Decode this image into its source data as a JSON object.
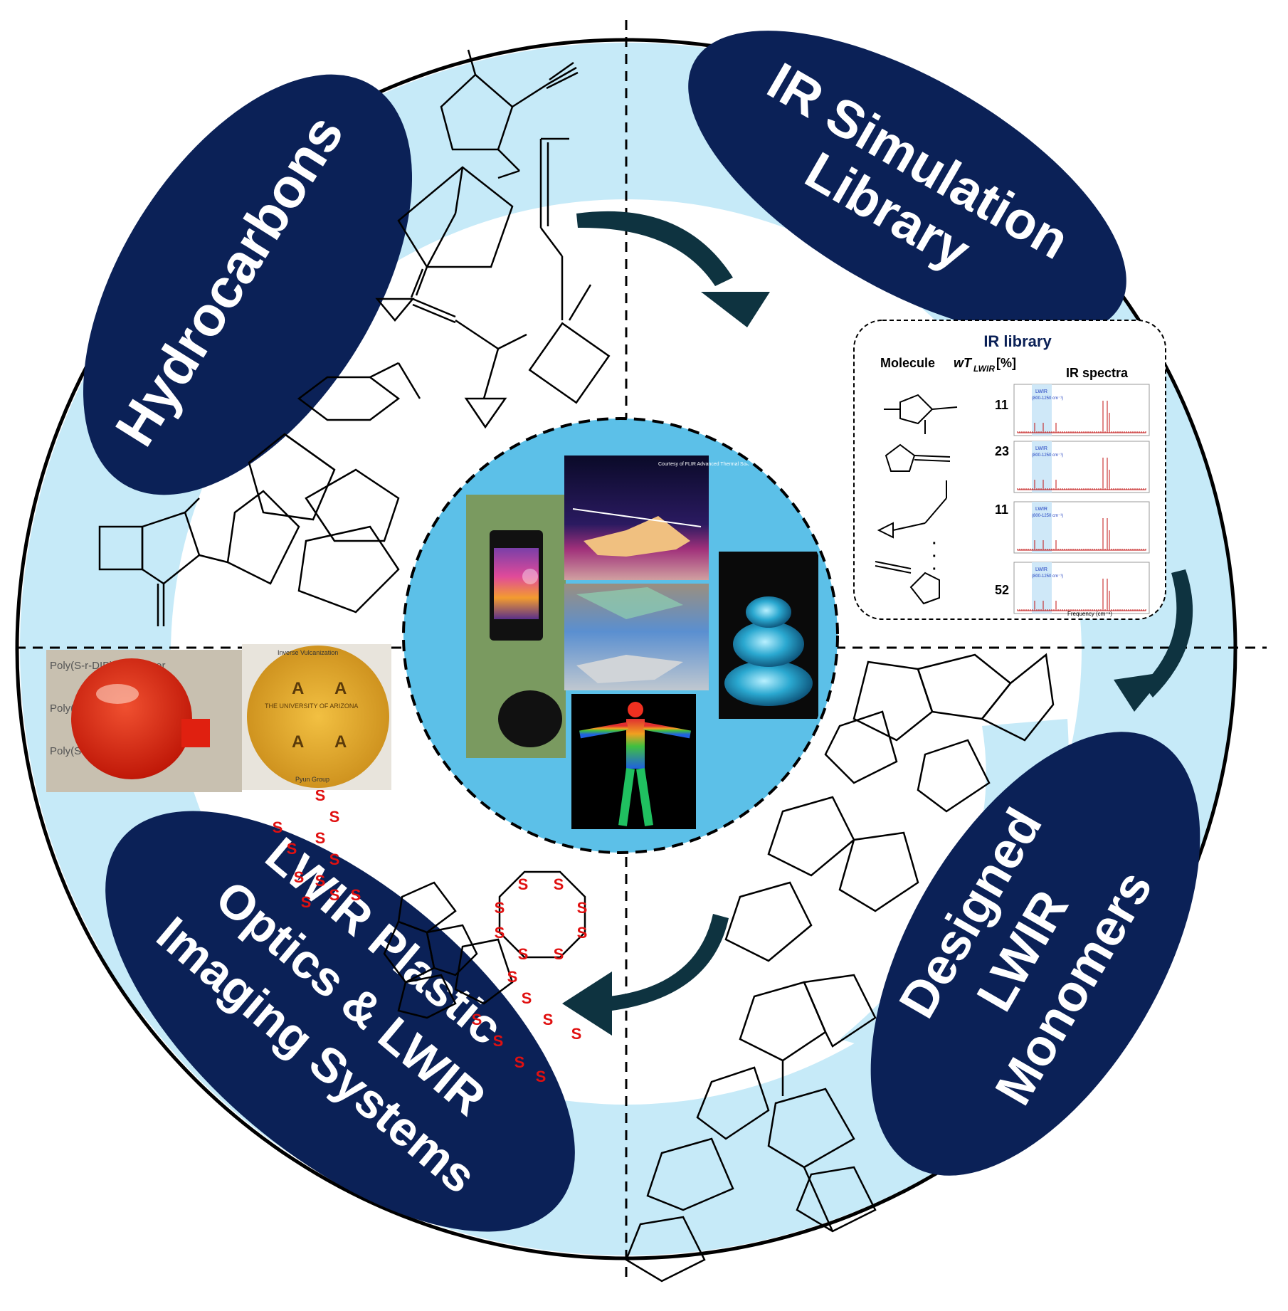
{
  "labels": {
    "hydrocarbons": "Hydrocarbons",
    "ir_sim_line1": "IR Simulation",
    "ir_sim_line2": "Library",
    "designed_line1": "Designed",
    "designed_line2": "LWIR",
    "designed_line3": "Monomers",
    "optics_line1": "LWIR Plastic",
    "optics_line2": "Optics & LWIR",
    "optics_line3": "Imaging Systems"
  },
  "ir_library": {
    "title": "IR library",
    "col_molecule": "Molecule",
    "col_wt_prefix": "wT",
    "col_wt_sub": "LWIR",
    "col_wt_suffix": " [%]",
    "col_spectra": "IR spectra",
    "rows": [
      {
        "value": "11",
        "band": "LWIR",
        "band_range": "(800-1250 cm⁻¹)"
      },
      {
        "value": "23",
        "band": "LWIR",
        "band_range": "(800-1250 cm⁻¹)"
      },
      {
        "value": "11",
        "band": "LWIR",
        "band_range": "(800-1250 cm⁻¹)"
      },
      {
        "value": "52",
        "band": "LWIR",
        "band_range": "(800-1250 cm⁻¹)"
      }
    ],
    "ellipsis": "·",
    "x_axis": "Frequency (cm⁻¹)"
  },
  "center_images": {
    "helicopter_credit": "Courtesy of FLIR Advanced Thermal Solutions"
  },
  "samples": {
    "doc_line1": "Inverse Vulcanization",
    "doc_line2": "THE UNIVERSITY OF ARIZONA",
    "doc_line3": "Pyun Group",
    "paper_text": "Poly(S-r-DIB) copolymer"
  },
  "sulfur": {
    "atom": "S"
  }
}
